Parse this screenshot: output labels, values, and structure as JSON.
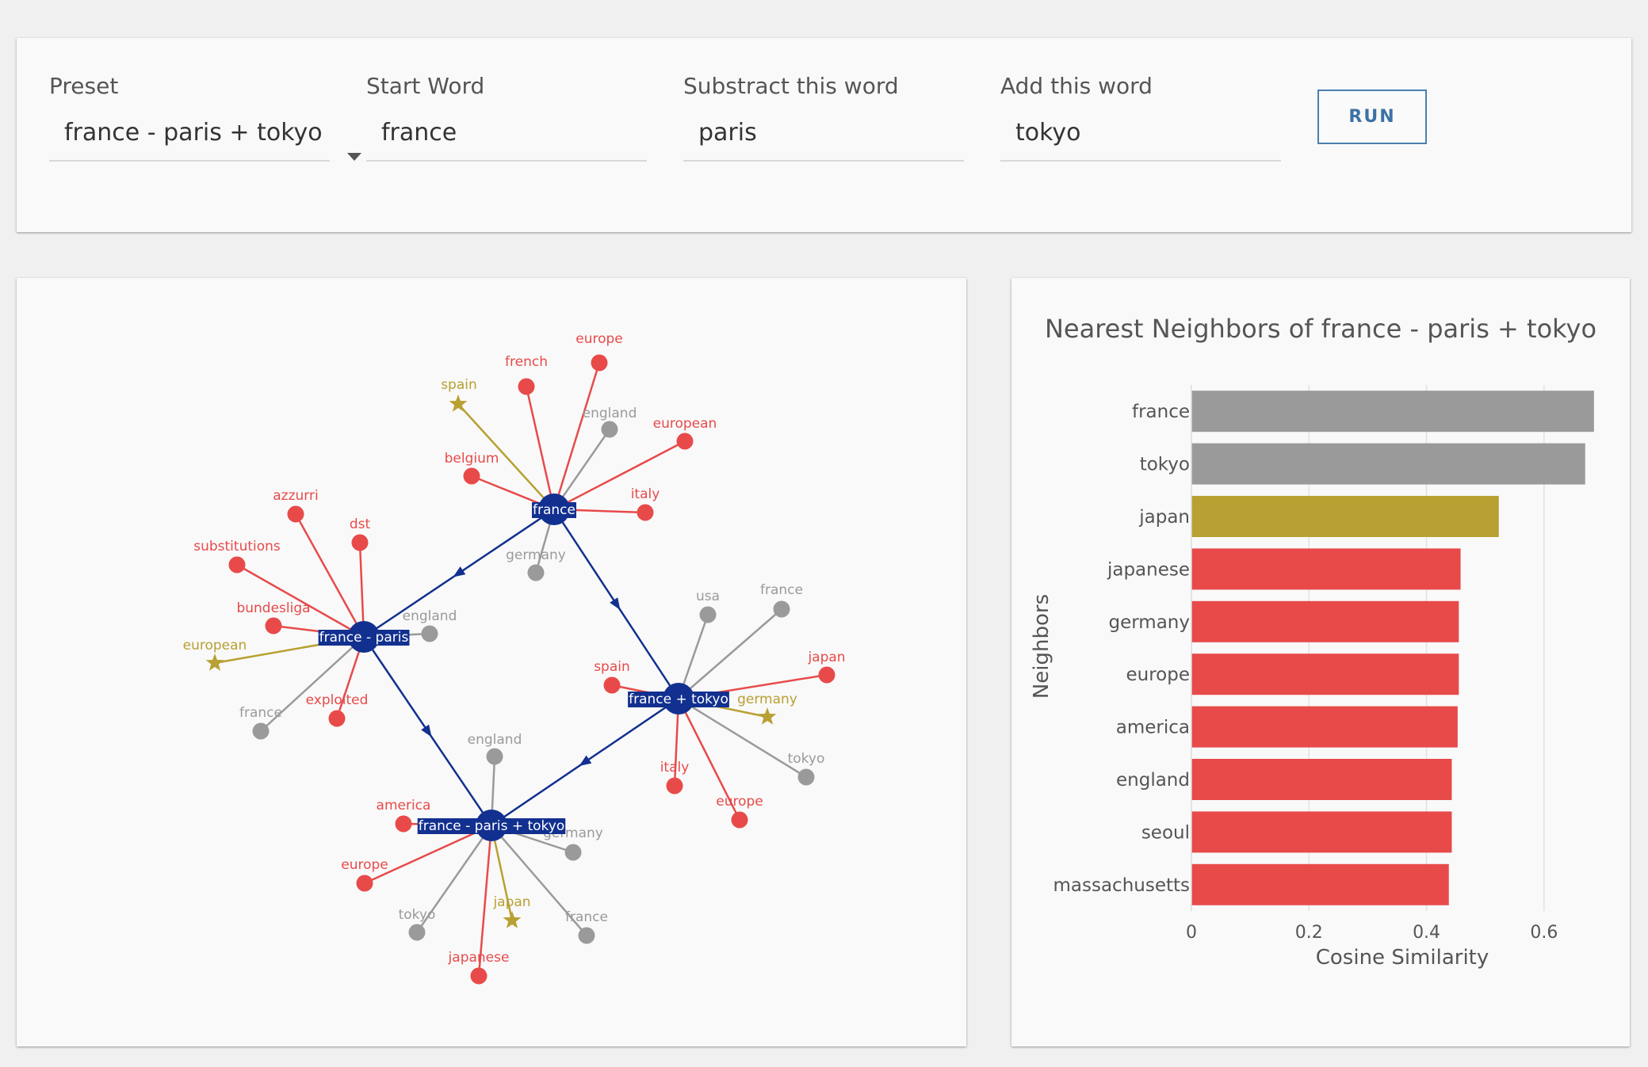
{
  "controls": {
    "preset": {
      "label": "Preset",
      "value": "france - paris + tokyo"
    },
    "start_word": {
      "label": "Start Word",
      "value": "france"
    },
    "subtract_word": {
      "label": "Substract this word",
      "value": "paris"
    },
    "add_word": {
      "label": "Add this word",
      "value": "tokyo"
    },
    "run_label": "RUN"
  },
  "colors": {
    "hub": "#12308f",
    "red": "#e84a4a",
    "gray": "#9a9a9a",
    "gold": "#b8a032"
  },
  "graph": {
    "hubs": [
      {
        "id": "france",
        "label": "france"
      },
      {
        "id": "fp",
        "label": "france - paris"
      },
      {
        "id": "ft",
        "label": "france + tokyo"
      },
      {
        "id": "fpt",
        "label": "france - paris + tokyo"
      }
    ],
    "arrows": [
      [
        "france",
        "fp"
      ],
      [
        "france",
        "ft"
      ],
      [
        "fp",
        "fpt"
      ],
      [
        "ft",
        "fpt"
      ]
    ],
    "leaves": [
      {
        "hub": "france",
        "label": "spain",
        "color": "gold",
        "shape": "star"
      },
      {
        "hub": "france",
        "label": "french",
        "color": "red",
        "shape": "circle"
      },
      {
        "hub": "france",
        "label": "europe",
        "color": "red",
        "shape": "circle"
      },
      {
        "hub": "france",
        "label": "england",
        "color": "gray",
        "shape": "circle"
      },
      {
        "hub": "france",
        "label": "european",
        "color": "red",
        "shape": "circle"
      },
      {
        "hub": "france",
        "label": "belgium",
        "color": "red",
        "shape": "circle"
      },
      {
        "hub": "france",
        "label": "italy",
        "color": "red",
        "shape": "circle"
      },
      {
        "hub": "france",
        "label": "germany",
        "color": "gray",
        "shape": "circle"
      },
      {
        "hub": "fp",
        "label": "azzurri",
        "color": "red",
        "shape": "circle"
      },
      {
        "hub": "fp",
        "label": "dst",
        "color": "red",
        "shape": "circle"
      },
      {
        "hub": "fp",
        "label": "substitutions",
        "color": "red",
        "shape": "circle"
      },
      {
        "hub": "fp",
        "label": "bundesliga",
        "color": "red",
        "shape": "circle"
      },
      {
        "hub": "fp",
        "label": "england",
        "color": "gray",
        "shape": "circle"
      },
      {
        "hub": "fp",
        "label": "european",
        "color": "gold",
        "shape": "star"
      },
      {
        "hub": "fp",
        "label": "france",
        "color": "gray",
        "shape": "circle"
      },
      {
        "hub": "fp",
        "label": "exploited",
        "color": "red",
        "shape": "circle"
      },
      {
        "hub": "ft",
        "label": "usa",
        "color": "gray",
        "shape": "circle"
      },
      {
        "hub": "ft",
        "label": "france",
        "color": "gray",
        "shape": "circle"
      },
      {
        "hub": "ft",
        "label": "japan",
        "color": "red",
        "shape": "circle"
      },
      {
        "hub": "ft",
        "label": "spain",
        "color": "red",
        "shape": "circle"
      },
      {
        "hub": "ft",
        "label": "germany",
        "color": "gold",
        "shape": "star"
      },
      {
        "hub": "ft",
        "label": "tokyo",
        "color": "gray",
        "shape": "circle"
      },
      {
        "hub": "ft",
        "label": "italy",
        "color": "red",
        "shape": "circle"
      },
      {
        "hub": "ft",
        "label": "europe",
        "color": "red",
        "shape": "circle"
      },
      {
        "hub": "fpt",
        "label": "england",
        "color": "gray",
        "shape": "circle"
      },
      {
        "hub": "fpt",
        "label": "america",
        "color": "red",
        "shape": "circle"
      },
      {
        "hub": "fpt",
        "label": "germany",
        "color": "gray",
        "shape": "circle"
      },
      {
        "hub": "fpt",
        "label": "europe",
        "color": "red",
        "shape": "circle"
      },
      {
        "hub": "fpt",
        "label": "japan",
        "color": "gold",
        "shape": "star"
      },
      {
        "hub": "fpt",
        "label": "tokyo",
        "color": "gray",
        "shape": "circle"
      },
      {
        "hub": "fpt",
        "label": "france",
        "color": "gray",
        "shape": "circle"
      },
      {
        "hub": "fpt",
        "label": "japanese",
        "color": "red",
        "shape": "circle"
      }
    ]
  },
  "chart_data": {
    "type": "bar",
    "orientation": "horizontal",
    "title": "Nearest Neighbors of france - paris + tokyo",
    "xlabel": "Cosine Similarity",
    "ylabel": "Neighbors",
    "xlim": [
      0,
      0.7
    ],
    "xticks": [
      0,
      0.2,
      0.4,
      0.6
    ],
    "grid": true,
    "categories": [
      "france",
      "tokyo",
      "japan",
      "japanese",
      "germany",
      "europe",
      "america",
      "england",
      "seoul",
      "massachusetts"
    ],
    "values": [
      0.685,
      0.67,
      0.523,
      0.458,
      0.455,
      0.455,
      0.453,
      0.443,
      0.443,
      0.438
    ],
    "bar_colors": [
      "#9a9a9a",
      "#9a9a9a",
      "#b8a032",
      "#e84a4a",
      "#e84a4a",
      "#e84a4a",
      "#e84a4a",
      "#e84a4a",
      "#e84a4a",
      "#e84a4a"
    ]
  }
}
